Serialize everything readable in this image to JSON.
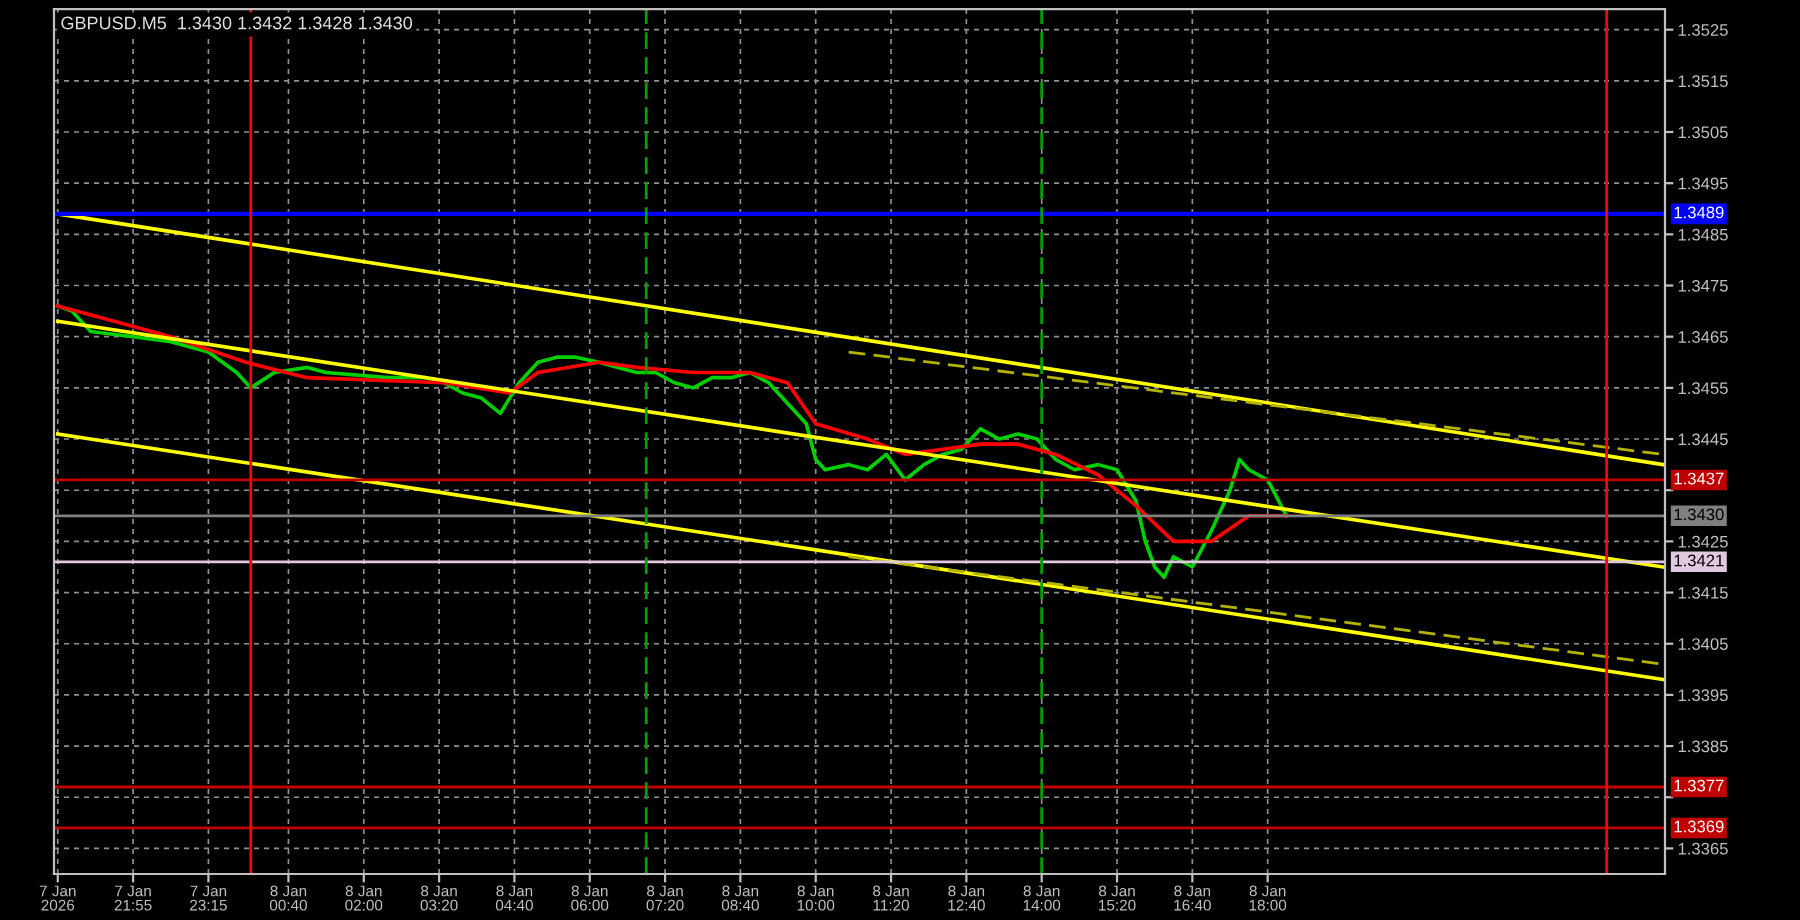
{
  "chart_data": {
    "type": "line",
    "title": "GBPUSD.M5  1.3430 1.3432 1.3428 1.3430",
    "xlim": [
      "2026-01-07T20:31",
      "2026-01-09T01:02"
    ],
    "ylim": [
      1.336,
      1.3529
    ],
    "xticks": [
      {
        "value": "2026-01-07T20:35",
        "label": "7 Jan 2026"
      },
      {
        "value": "2026-01-07T21:55",
        "label": "7 Jan 21:55"
      },
      {
        "value": "2026-01-07T23:15",
        "label": "7 Jan 23:15"
      },
      {
        "value": "2026-01-08T00:40",
        "label": "8 Jan 00:40"
      },
      {
        "value": "2026-01-08T02:00",
        "label": "8 Jan 02:00"
      },
      {
        "value": "2026-01-08T03:20",
        "label": "8 Jan 03:20"
      },
      {
        "value": "2026-01-08T04:40",
        "label": "8 Jan 04:40"
      },
      {
        "value": "2026-01-08T06:00",
        "label": "8 Jan 06:00"
      },
      {
        "value": "2026-01-08T07:20",
        "label": "8 Jan 07:20"
      },
      {
        "value": "2026-01-08T08:40",
        "label": "8 Jan 08:40"
      },
      {
        "value": "2026-01-08T10:00",
        "label": "8 Jan 10:00"
      },
      {
        "value": "2026-01-08T11:20",
        "label": "8 Jan 11:20"
      },
      {
        "value": "2026-01-08T12:40",
        "label": "8 Jan 12:40"
      },
      {
        "value": "2026-01-08T14:00",
        "label": "8 Jan 14:00"
      },
      {
        "value": "2026-01-08T15:20",
        "label": "8 Jan 15:20"
      },
      {
        "value": "2026-01-08T16:40",
        "label": "8 Jan 16:40"
      },
      {
        "value": "2026-01-08T18:00",
        "label": "8 Jan 18:00"
      }
    ],
    "yticks": [
      1.3365,
      {
        "value": 1.3375,
        "label": null
      },
      1.3385,
      1.3395,
      1.3405,
      1.3415,
      1.3425,
      {
        "value": 1.3435,
        "label": null
      },
      1.3445,
      1.3455,
      1.3465,
      1.3475,
      1.3485,
      1.3495,
      1.3505,
      1.3515,
      1.3525
    ],
    "grid": true,
    "legend": false,
    "series": [
      {
        "color": "#00d000",
        "x": [
          "2026-01-07T20:35",
          "2026-01-07T20:50",
          "2026-01-07T21:10",
          "2026-01-07T21:55",
          "2026-01-07T22:35",
          "2026-01-07T23:15",
          "2026-01-07T23:45",
          "2026-01-08T00:00",
          "2026-01-08T00:25",
          "2026-01-08T01:00",
          "2026-01-08T01:20",
          "2026-01-08T02:25",
          "2026-01-08T03:05",
          "2026-01-08T03:25",
          "2026-01-08T03:45",
          "2026-01-08T04:05",
          "2026-01-08T04:25",
          "2026-01-08T04:45",
          "2026-01-08T05:05",
          "2026-01-08T05:25",
          "2026-01-08T05:45",
          "2026-01-08T06:10",
          "2026-01-08T06:30",
          "2026-01-08T06:50",
          "2026-01-08T07:10",
          "2026-01-08T07:30",
          "2026-01-08T07:50",
          "2026-01-08T08:10",
          "2026-01-08T08:30",
          "2026-01-08T08:50",
          "2026-01-08T09:10",
          "2026-01-08T09:30",
          "2026-01-08T09:50",
          "2026-01-08T10:00",
          "2026-01-08T10:10",
          "2026-01-08T10:35",
          "2026-01-08T10:55",
          "2026-01-08T11:15",
          "2026-01-08T11:35",
          "2026-01-08T11:55",
          "2026-01-08T12:15",
          "2026-01-08T12:35",
          "2026-01-08T12:55",
          "2026-01-08T13:15",
          "2026-01-08T13:35",
          "2026-01-08T13:55",
          "2026-01-08T14:15",
          "2026-01-08T14:35",
          "2026-01-08T15:00",
          "2026-01-08T15:20",
          "2026-01-08T15:40",
          "2026-01-08T15:50",
          "2026-01-08T16:00",
          "2026-01-08T16:10",
          "2026-01-08T16:20",
          "2026-01-08T16:40",
          "2026-01-08T17:00",
          "2026-01-08T17:20",
          "2026-01-08T17:30",
          "2026-01-08T17:40",
          "2026-01-08T18:00",
          "2026-01-08T18:20"
        ],
        "values": [
          1.3471,
          1.347,
          1.3466,
          1.3465,
          1.3464,
          1.3462,
          1.3458,
          1.3455,
          1.3458,
          1.3459,
          1.3458,
          1.3457,
          1.3457,
          1.3456,
          1.3454,
          1.3453,
          1.345,
          1.3456,
          1.346,
          1.3461,
          1.3461,
          1.346,
          1.3459,
          1.3458,
          1.3458,
          1.3456,
          1.3455,
          1.3457,
          1.3457,
          1.3458,
          1.3456,
          1.3452,
          1.3448,
          1.3441,
          1.3439,
          1.344,
          1.3439,
          1.3442,
          1.3437,
          1.344,
          1.3442,
          1.3443,
          1.3447,
          1.3445,
          1.3446,
          1.3445,
          1.3441,
          1.3439,
          1.344,
          1.3439,
          1.3433,
          1.3425,
          1.342,
          1.3418,
          1.3422,
          1.342,
          1.3427,
          1.3435,
          1.3441,
          1.3439,
          1.3437,
          1.343
        ]
      },
      {
        "color": "#ff0000",
        "x": [
          "2026-01-07T20:35",
          "2026-01-07T21:35",
          "2026-01-07T22:35",
          "2026-01-07T23:55",
          "2026-01-08T01:00",
          "2026-01-08T03:25",
          "2026-01-08T04:35",
          "2026-01-08T05:05",
          "2026-01-08T06:10",
          "2026-01-08T06:50",
          "2026-01-08T07:50",
          "2026-01-08T08:50",
          "2026-01-08T09:30",
          "2026-01-08T10:00",
          "2026-01-08T10:55",
          "2026-01-08T11:35",
          "2026-01-08T12:15",
          "2026-01-08T12:55",
          "2026-01-08T13:35",
          "2026-01-08T14:15",
          "2026-01-08T15:00",
          "2026-01-08T15:40",
          "2026-01-08T16:20",
          "2026-01-08T17:00",
          "2026-01-08T17:40",
          "2026-01-08T18:20"
        ],
        "values": [
          1.3471,
          1.3468,
          1.3465,
          1.346,
          1.3457,
          1.3456,
          1.3454,
          1.3458,
          1.346,
          1.3459,
          1.3458,
          1.3458,
          1.3456,
          1.3448,
          1.3445,
          1.3442,
          1.3443,
          1.3444,
          1.3444,
          1.3442,
          1.3438,
          1.3432,
          1.3425,
          1.3425,
          1.343,
          1.343
        ]
      },
      {
        "color": "#ffff00",
        "x": [
          "2026-01-07T20:35",
          "2026-01-09T01:00"
        ],
        "values": [
          1.3489,
          1.344
        ]
      },
      {
        "color": "#ffff00",
        "x": [
          "2026-01-07T20:35",
          "2026-01-09T01:00"
        ],
        "values": [
          1.3468,
          1.342
        ]
      },
      {
        "color": "#ffff00",
        "x": [
          "2026-01-07T20:35",
          "2026-01-09T01:00"
        ],
        "values": [
          1.3446,
          1.3398
        ]
      },
      {
        "color": "#b4b400",
        "line_style": "dashed",
        "x": [
          "2026-01-08T10:35",
          "2026-01-09T01:00"
        ],
        "values": [
          1.3462,
          1.3442
        ]
      },
      {
        "color": "#b4b400",
        "line_style": "dashed",
        "x": [
          "2026-01-08T10:35",
          "2026-01-09T01:00"
        ],
        "values": [
          1.3422,
          1.3401
        ]
      }
    ],
    "ref_lines": [
      {
        "axis": "y",
        "value": 1.3489,
        "label": "1.3489",
        "color": "#0000ff"
      },
      {
        "axis": "y",
        "value": 1.3437,
        "label": "1.3437",
        "color": "#c00000"
      },
      {
        "axis": "y",
        "value": 1.343,
        "label": "1.3430",
        "color": "#808080"
      },
      {
        "axis": "y",
        "value": 1.3421,
        "label": "1.3421",
        "color": "#e0c8e0"
      },
      {
        "axis": "y",
        "value": 1.3377,
        "label": "1.3377",
        "color": "#c00000"
      },
      {
        "axis": "y",
        "value": 1.3369,
        "label": "1.3369",
        "color": "#c00000"
      },
      {
        "axis": "x",
        "value": "2026-01-08T00:00",
        "color": "#ff0000"
      },
      {
        "axis": "x",
        "value": "2026-01-08T07:00",
        "color": "#00a000",
        "line_style": "dashed"
      },
      {
        "axis": "x",
        "value": "2026-01-08T14:00",
        "color": "#00a000",
        "line_style": "dashed"
      },
      {
        "axis": "x",
        "value": "2026-01-09T00:00",
        "color": "#ff0000"
      }
    ]
  }
}
